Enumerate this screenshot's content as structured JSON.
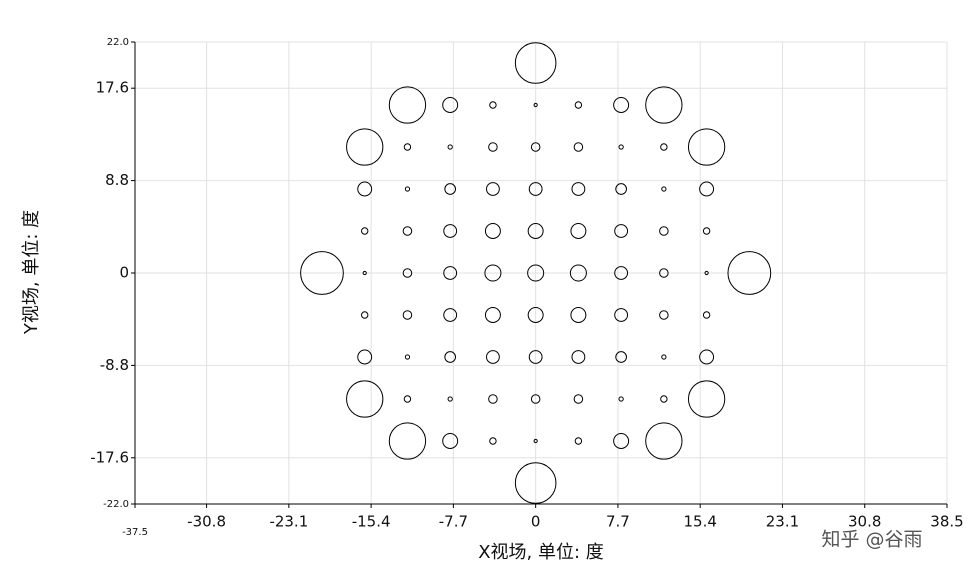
{
  "chart_data": {
    "type": "scatter",
    "x_label": "X视场, 单位: 度",
    "y_label": "Y视场, 单位: 度",
    "watermark": "知乎 @谷雨",
    "xlim": [
      -37.5,
      38.5
    ],
    "ylim": [
      -22,
      22
    ],
    "xticks": [
      -37.5,
      -30.8,
      -23.1,
      -15.4,
      -7.7,
      0,
      7.7,
      15.4,
      23.1,
      30.8,
      38.5
    ],
    "yticks": [
      {
        "value": -22,
        "label": "-22.0"
      },
      -17.6,
      -8.8,
      0,
      8.8,
      17.6,
      {
        "value": 22,
        "label": "22.0"
      }
    ],
    "grid": true,
    "color": "#000000",
    "x": [
      0,
      -12,
      -8,
      -4,
      0,
      4,
      8,
      12,
      -16,
      -12,
      -8,
      -4,
      0,
      4,
      8,
      12,
      16,
      -16,
      -12,
      -8,
      -4,
      0,
      4,
      8,
      12,
      16,
      -16,
      -12,
      -8,
      -4,
      0,
      4,
      8,
      12,
      16,
      -20,
      -16,
      -12,
      -8,
      -4,
      0,
      4,
      8,
      12,
      16,
      20,
      -16,
      -12,
      -8,
      -4,
      0,
      4,
      8,
      12,
      16,
      -16,
      -12,
      -8,
      -4,
      0,
      4,
      8,
      12,
      16,
      -16,
      -12,
      -8,
      -4,
      0,
      4,
      8,
      12,
      16,
      -12,
      -8,
      -4,
      0,
      4,
      8,
      12,
      0
    ],
    "y": [
      20,
      16,
      16,
      16,
      16,
      16,
      16,
      16,
      12,
      12,
      12,
      12,
      12,
      12,
      12,
      12,
      12,
      8,
      8,
      8,
      8,
      8,
      8,
      8,
      8,
      8,
      4,
      4,
      4,
      4,
      4,
      4,
      4,
      4,
      4,
      0,
      0,
      0,
      0,
      0,
      0,
      0,
      0,
      0,
      0,
      0,
      -4,
      -4,
      -4,
      -4,
      -4,
      -4,
      -4,
      -4,
      -4,
      -8,
      -8,
      -8,
      -8,
      -8,
      -8,
      -8,
      -8,
      -8,
      -12,
      -12,
      -12,
      -12,
      -12,
      -12,
      -12,
      -12,
      -12,
      -16,
      -16,
      -16,
      -16,
      -16,
      -16,
      -16,
      -20
    ],
    "sizes": [
      1.9,
      1.7,
      0.7,
      0.3,
      0.15,
      0.3,
      0.7,
      1.7,
      1.7,
      0.3,
      0.2,
      0.4,
      0.4,
      0.4,
      0.2,
      0.3,
      1.7,
      0.65,
      0.2,
      0.5,
      0.6,
      0.6,
      0.6,
      0.5,
      0.2,
      0.65,
      0.3,
      0.4,
      0.6,
      0.7,
      0.7,
      0.7,
      0.6,
      0.4,
      0.3,
      2,
      0.15,
      0.4,
      0.6,
      0.75,
      0.75,
      0.75,
      0.6,
      0.4,
      0.15,
      2,
      0.3,
      0.4,
      0.6,
      0.7,
      0.7,
      0.7,
      0.6,
      0.4,
      0.3,
      0.65,
      0.2,
      0.5,
      0.6,
      0.6,
      0.6,
      0.5,
      0.2,
      0.65,
      1.7,
      0.3,
      0.2,
      0.4,
      0.4,
      0.4,
      0.2,
      0.3,
      1.7,
      1.7,
      0.7,
      0.3,
      0.15,
      0.3,
      0.7,
      1.7,
      1.9
    ]
  }
}
